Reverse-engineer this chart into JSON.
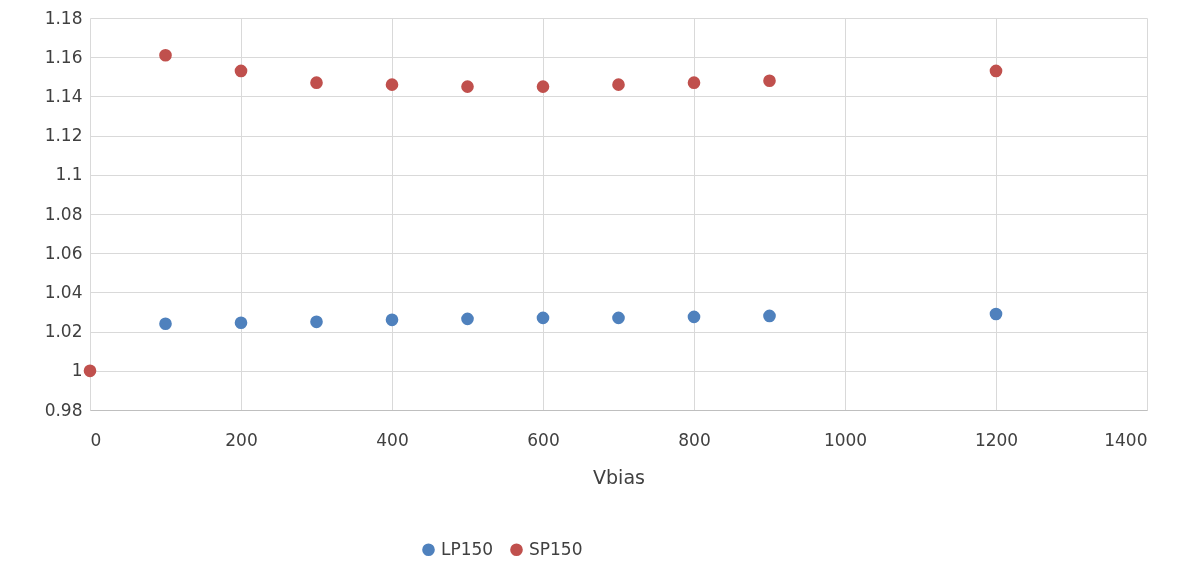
{
  "chart_data": {
    "type": "scatter",
    "xlabel": "Vbias",
    "xlim": [
      0,
      1400
    ],
    "xticks": [
      0,
      200,
      400,
      600,
      800,
      1000,
      1200,
      1400
    ],
    "ylim": [
      0.98,
      1.18
    ],
    "yticks": [
      0.98,
      1,
      1.02,
      1.04,
      1.06,
      1.08,
      1.1,
      1.12,
      1.14,
      1.16,
      1.18
    ],
    "grid": true,
    "legend": "bottom",
    "marker": "circle",
    "series": [
      {
        "name": "LP150",
        "color": "#4f81bd",
        "x": [
          100,
          200,
          300,
          400,
          500,
          600,
          700,
          800,
          900,
          1200
        ],
        "values": [
          1.024,
          1.0245,
          1.025,
          1.026,
          1.0265,
          1.027,
          1.027,
          1.0275,
          1.028,
          1.029
        ]
      },
      {
        "name": "SP150",
        "color": "#c0504d",
        "x": [
          0,
          100,
          200,
          300,
          400,
          500,
          600,
          700,
          800,
          900,
          1200
        ],
        "values": [
          1.0,
          1.161,
          1.153,
          1.147,
          1.146,
          1.145,
          1.145,
          1.146,
          1.147,
          1.148,
          1.153
        ]
      }
    ]
  }
}
